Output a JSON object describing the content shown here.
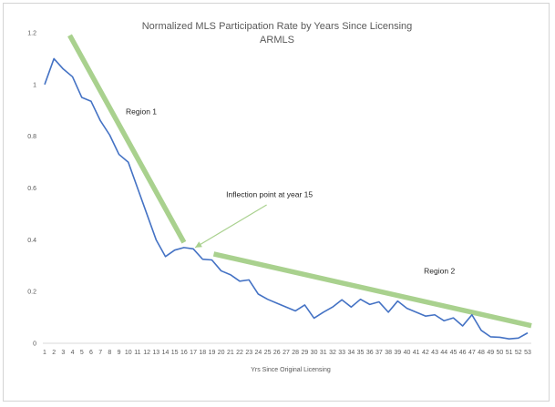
{
  "chart_data": {
    "type": "line",
    "title": "Normalized MLS Participation Rate by Years Since Licensing",
    "subtitle": "ARMLS",
    "xlabel": "Yrs Since Original Licensing",
    "ylabel": "",
    "ylim": [
      0,
      1.2
    ],
    "yticks": [
      0,
      0.2,
      0.4,
      0.6,
      0.8,
      1,
      1.2
    ],
    "grid": false,
    "legend": "none",
    "x": [
      1,
      2,
      3,
      4,
      5,
      6,
      7,
      8,
      9,
      10,
      11,
      12,
      13,
      14,
      15,
      16,
      17,
      18,
      19,
      20,
      21,
      22,
      23,
      24,
      25,
      26,
      27,
      28,
      29,
      30,
      31,
      32,
      33,
      34,
      35,
      36,
      37,
      38,
      39,
      40,
      41,
      42,
      43,
      44,
      45,
      46,
      47,
      48,
      49,
      50,
      51,
      52,
      53
    ],
    "series": [
      {
        "values": [
          1.0,
          1.1,
          1.06,
          1.03,
          0.95,
          0.935,
          0.86,
          0.805,
          0.73,
          0.7,
          0.6,
          0.5,
          0.4,
          0.335,
          0.36,
          0.37,
          0.365,
          0.325,
          0.322,
          0.28,
          0.265,
          0.24,
          0.245,
          0.19,
          0.17,
          0.155,
          0.14,
          0.125,
          0.148,
          0.097,
          0.12,
          0.14,
          0.168,
          0.14,
          0.17,
          0.15,
          0.16,
          0.12,
          0.163,
          0.135,
          0.12,
          0.105,
          0.11,
          0.087,
          0.098,
          0.067,
          0.11,
          0.05,
          0.025,
          0.023,
          0.017,
          0.02,
          0.04
        ],
        "color": "#4472c4"
      }
    ],
    "trendlines": [
      {
        "from": [
          3.7,
          1.19
        ],
        "to": [
          16.0,
          0.39
        ],
        "color": "#a9d18e"
      },
      {
        "from": [
          19.2,
          0.345
        ],
        "to": [
          53.4,
          0.068
        ],
        "color": "#a9d18e"
      }
    ],
    "annotations": [
      {
        "text": "Region 1",
        "x": 11.4,
        "y": 0.885
      },
      {
        "text": "Inflection point at year 15",
        "x": 25.2,
        "y": 0.565
      },
      {
        "text": "Region 2",
        "x": 43.5,
        "y": 0.27
      }
    ],
    "arrow": {
      "from": [
        24.9,
        0.535
      ],
      "to": [
        17.2,
        0.37
      ],
      "color": "#a9d18e"
    }
  }
}
